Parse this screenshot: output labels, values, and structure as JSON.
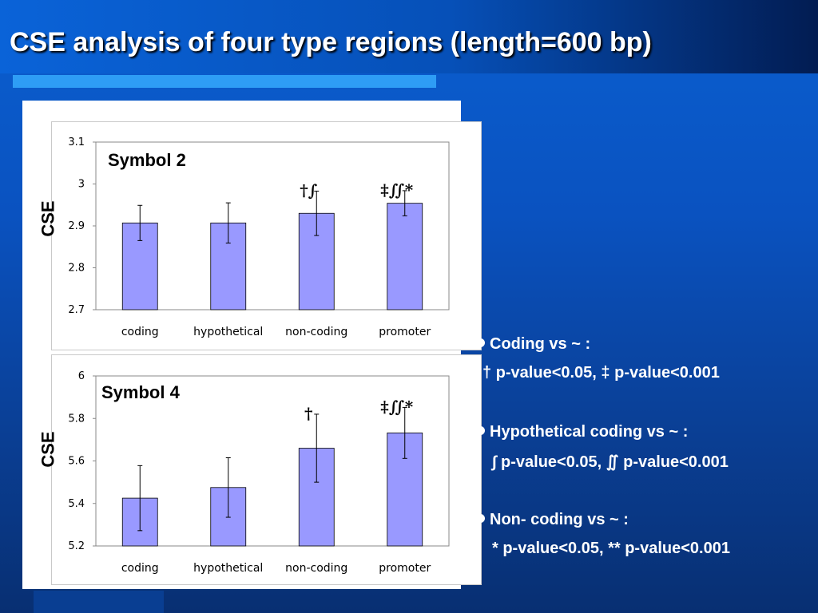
{
  "slide": {
    "title": "CSE analysis of four type regions (length=600 bp)"
  },
  "chart_data": [
    {
      "type": "bar",
      "title": "Symbol 2",
      "ylabel": "CSE",
      "xlabel": "",
      "categories": [
        "coding",
        "hypothetical",
        "non-coding",
        "promoter"
      ],
      "values": [
        2.907,
        2.907,
        2.93,
        2.954
      ],
      "errors": [
        0.042,
        0.048,
        0.053,
        0.03
      ],
      "ylim": [
        2.7,
        3.1
      ],
      "yticks": [
        "2.7",
        "2.8",
        "2.9",
        "3",
        "3.1"
      ],
      "ytick_values": [
        2.7,
        2.8,
        2.9,
        3.0,
        3.1
      ],
      "annotations": [
        "",
        "",
        "†∫",
        "‡∬*"
      ],
      "bar_color": "#9999ff",
      "grid": false
    },
    {
      "type": "bar",
      "title": "Symbol 4",
      "ylabel": "CSE",
      "xlabel": "",
      "categories": [
        "coding",
        "hypothetical",
        "non-coding",
        "promoter"
      ],
      "values": [
        5.425,
        5.475,
        5.66,
        5.732
      ],
      "errors": [
        0.153,
        0.14,
        0.16,
        0.12
      ],
      "ylim": [
        5.2,
        6.0
      ],
      "yticks": [
        "5.2",
        "5.4",
        "5.6",
        "5.8",
        "6"
      ],
      "ytick_values": [
        5.2,
        5.4,
        5.6,
        5.8,
        6.0
      ],
      "annotations": [
        "",
        "",
        "†",
        "‡∬*"
      ],
      "bar_color": "#9999ff",
      "grid": false
    }
  ],
  "legend": [
    {
      "text": "Coding vs ~ :",
      "bullet": true
    },
    {
      "text": "† p-value<0.05, ‡ p-value<0.001",
      "bullet": false
    },
    {
      "text": "Hypothetical coding vs ~ :",
      "bullet": true
    },
    {
      "text": "∫ p-value<0.05, ∬ p-value<0.001",
      "bullet": false
    },
    {
      "text": "Non- coding vs ~ :",
      "bullet": true
    },
    {
      "text": "* p-value<0.05, ** p-value<0.001",
      "bullet": false
    }
  ],
  "colors": {
    "background": "#0a52c0",
    "accent_bar": "#2e9df5",
    "bar_fill": "#9999ff",
    "text": "#ffffff"
  }
}
